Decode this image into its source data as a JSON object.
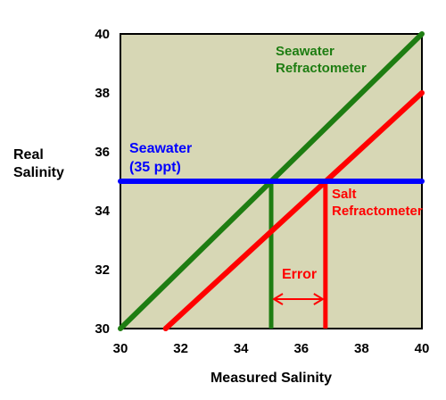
{
  "chart_data": {
    "type": "line",
    "title": "",
    "xlabel": "Measured Salinity",
    "ylabel_lines": [
      "Real",
      "Salinity"
    ],
    "xlim": [
      30,
      40
    ],
    "ylim": [
      30,
      40
    ],
    "x_ticks": [
      30,
      32,
      34,
      36,
      38,
      40
    ],
    "y_ticks": [
      30,
      32,
      34,
      36,
      38,
      40
    ],
    "grid": false,
    "legend": "none",
    "plot_background": "#d7d7b5",
    "series": [
      {
        "name": "Seawater Refractometer",
        "color": "#1e7d12",
        "x": [
          30,
          40
        ],
        "y": [
          30,
          40
        ]
      },
      {
        "name": "Salt Refractometer",
        "color": "#ff0000",
        "x": [
          31.5,
          40
        ],
        "y": [
          30,
          38
        ]
      },
      {
        "name": "Seawater (35 ppt)",
        "color": "#0000ff",
        "x": [
          30,
          40
        ],
        "y": [
          35,
          35
        ]
      }
    ],
    "drop_lines": [
      {
        "color": "#1e7d12",
        "x": 35,
        "y_from": 30,
        "y_to": 35
      },
      {
        "color": "#ff0000",
        "x": 36.8,
        "y_from": 30,
        "y_to": 35
      }
    ],
    "error_arrow": {
      "color": "#ff0000",
      "x_from": 35,
      "x_to": 36.8,
      "y": 31
    },
    "annotations": {
      "seawater_refractometer": [
        "Seawater",
        "Refractometer"
      ],
      "seawater_35": [
        "Seawater",
        "(35 ppt)"
      ],
      "salt_refractometer": [
        "Salt",
        "Refractometer"
      ],
      "error": "Error"
    }
  }
}
